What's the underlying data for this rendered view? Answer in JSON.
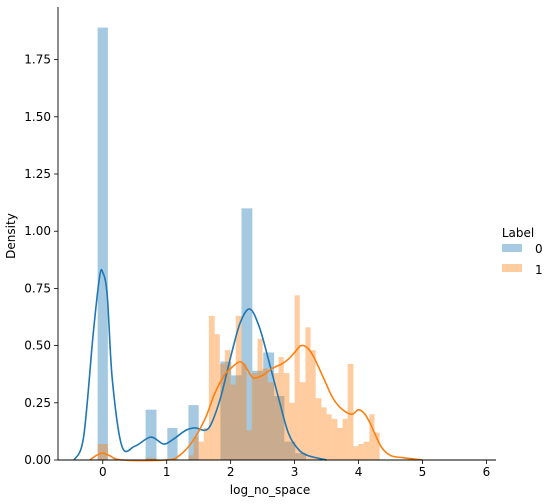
{
  "chart_data": {
    "type": "histogram-kde",
    "xlabel": "log_no_space",
    "ylabel": "Density",
    "xlim": [
      -0.7,
      6.15
    ],
    "ylim": [
      0,
      1.98
    ],
    "x_ticks": [
      0,
      1,
      2,
      3,
      4,
      5,
      6
    ],
    "y_ticks": [
      0.0,
      0.25,
      0.5,
      0.75,
      1.0,
      1.25,
      1.5,
      1.75
    ],
    "x_tick_labels": [
      "0",
      "1",
      "2",
      "3",
      "4",
      "5",
      "6"
    ],
    "y_tick_labels": [
      "0.00",
      "0.25",
      "0.50",
      "0.75",
      "1.00",
      "1.25",
      "1.50",
      "1.75"
    ],
    "grid": false,
    "legend": {
      "title": "Label",
      "placement": "right",
      "entries": [
        {
          "label": "0",
          "color": "#1f77b4"
        },
        {
          "label": "1",
          "color": "#ff7f0e"
        }
      ]
    },
    "series": [
      {
        "label": "0",
        "color": "#1f77b4",
        "bins": [
          [
            -0.08,
            0.08,
            1.89
          ],
          [
            0.67,
            0.84,
            0.22
          ],
          [
            1.01,
            1.17,
            0.14
          ],
          [
            1.34,
            1.5,
            0.24
          ],
          [
            1.84,
            2.01,
            0.43
          ],
          [
            2.01,
            2.17,
            0.37
          ],
          [
            2.17,
            2.34,
            1.1
          ],
          [
            2.34,
            2.51,
            0.39
          ],
          [
            2.51,
            2.68,
            0.47
          ],
          [
            2.68,
            2.84,
            0.28
          ],
          [
            2.84,
            3.01,
            0.08
          ],
          [
            3.01,
            3.18,
            0.03
          ]
        ],
        "kde": [
          [
            -0.45,
            0.0
          ],
          [
            -0.3,
            0.1
          ],
          [
            -0.15,
            0.55
          ],
          [
            -0.05,
            0.8
          ],
          [
            0.0,
            0.82
          ],
          [
            0.07,
            0.72
          ],
          [
            0.15,
            0.35
          ],
          [
            0.3,
            0.06
          ],
          [
            0.5,
            0.06
          ],
          [
            0.75,
            0.1
          ],
          [
            0.95,
            0.07
          ],
          [
            1.1,
            0.09
          ],
          [
            1.3,
            0.13
          ],
          [
            1.45,
            0.14
          ],
          [
            1.6,
            0.13
          ],
          [
            1.7,
            0.16
          ],
          [
            1.85,
            0.28
          ],
          [
            2.0,
            0.45
          ],
          [
            2.15,
            0.6
          ],
          [
            2.3,
            0.66
          ],
          [
            2.45,
            0.58
          ],
          [
            2.6,
            0.43
          ],
          [
            2.75,
            0.27
          ],
          [
            2.9,
            0.12
          ],
          [
            3.05,
            0.05
          ],
          [
            3.2,
            0.02
          ],
          [
            3.5,
            0.0
          ]
        ]
      },
      {
        "label": "1",
        "color": "#ff7f0e",
        "bins": [
          [
            -0.08,
            0.08,
            0.07
          ],
          [
            0.67,
            0.84,
            0.01
          ],
          [
            1.34,
            1.42,
            0.02
          ],
          [
            1.42,
            1.5,
            0.1
          ],
          [
            1.5,
            1.58,
            0.08
          ],
          [
            1.58,
            1.66,
            0.14
          ],
          [
            1.66,
            1.75,
            0.63
          ],
          [
            1.75,
            1.83,
            0.55
          ],
          [
            1.83,
            1.91,
            0.42
          ],
          [
            1.91,
            2.0,
            0.48
          ],
          [
            2.0,
            2.08,
            0.33
          ],
          [
            2.08,
            2.17,
            0.63
          ],
          [
            2.17,
            2.25,
            0.42
          ],
          [
            2.25,
            2.33,
            0.13
          ],
          [
            2.33,
            2.42,
            0.38
          ],
          [
            2.42,
            2.5,
            0.53
          ],
          [
            2.5,
            2.58,
            0.4
          ],
          [
            2.58,
            2.67,
            0.34
          ],
          [
            2.67,
            2.75,
            0.38
          ],
          [
            2.75,
            2.83,
            0.45
          ],
          [
            2.83,
            2.92,
            0.38
          ],
          [
            2.92,
            3.0,
            0.25
          ],
          [
            3.0,
            3.08,
            0.72
          ],
          [
            3.08,
            3.17,
            0.34
          ],
          [
            3.17,
            3.25,
            0.58
          ],
          [
            3.25,
            3.33,
            0.48
          ],
          [
            3.33,
            3.42,
            0.27
          ],
          [
            3.42,
            3.5,
            0.23
          ],
          [
            3.5,
            3.58,
            0.2
          ],
          [
            3.58,
            3.67,
            0.18
          ],
          [
            3.67,
            3.75,
            0.14
          ],
          [
            3.75,
            3.83,
            0.18
          ],
          [
            3.83,
            3.92,
            0.42
          ],
          [
            3.92,
            4.0,
            0.06
          ],
          [
            4.0,
            4.08,
            0.07
          ],
          [
            4.08,
            4.17,
            0.08
          ],
          [
            4.17,
            4.25,
            0.2
          ],
          [
            4.25,
            4.33,
            0.12
          ]
        ],
        "kde": [
          [
            -0.2,
            0.0
          ],
          [
            -0.1,
            0.02
          ],
          [
            0.0,
            0.03
          ],
          [
            0.1,
            0.02
          ],
          [
            0.3,
            0.0
          ],
          [
            1.0,
            0.0
          ],
          [
            1.2,
            0.02
          ],
          [
            1.4,
            0.08
          ],
          [
            1.6,
            0.18
          ],
          [
            1.75,
            0.29
          ],
          [
            1.9,
            0.37
          ],
          [
            2.0,
            0.4
          ],
          [
            2.15,
            0.43
          ],
          [
            2.25,
            0.4
          ],
          [
            2.35,
            0.36
          ],
          [
            2.5,
            0.37
          ],
          [
            2.65,
            0.4
          ],
          [
            2.8,
            0.42
          ],
          [
            2.9,
            0.44
          ],
          [
            3.0,
            0.47
          ],
          [
            3.1,
            0.5
          ],
          [
            3.2,
            0.49
          ],
          [
            3.3,
            0.45
          ],
          [
            3.45,
            0.36
          ],
          [
            3.6,
            0.27
          ],
          [
            3.75,
            0.22
          ],
          [
            3.9,
            0.2
          ],
          [
            4.0,
            0.22
          ],
          [
            4.1,
            0.2
          ],
          [
            4.2,
            0.15
          ],
          [
            4.35,
            0.06
          ],
          [
            4.5,
            0.02
          ],
          [
            4.7,
            0.01
          ],
          [
            5.0,
            0.0
          ]
        ]
      }
    ]
  }
}
